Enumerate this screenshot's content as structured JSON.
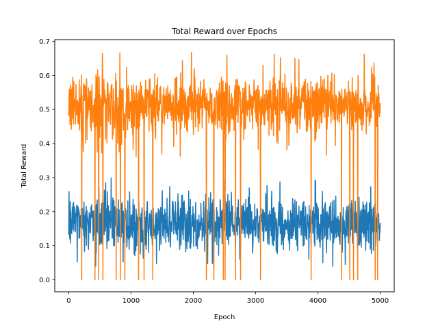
{
  "chart_data": {
    "type": "line",
    "title": "Total Reward over Epochs",
    "xlabel": "Epoch",
    "ylabel": "Total Reward",
    "xlim": [
      -225,
      5225
    ],
    "ylim": [
      -0.035,
      0.705
    ],
    "xticks": [
      0,
      1000,
      2000,
      3000,
      4000,
      5000
    ],
    "yticks": [
      0.0,
      0.1,
      0.2,
      0.3,
      0.4,
      0.5,
      0.6,
      0.7
    ],
    "xtick_labels": [
      "0",
      "1000",
      "2000",
      "3000",
      "4000",
      "5000"
    ],
    "ytick_labels": [
      "0.0",
      "0.1",
      "0.2",
      "0.3",
      "0.4",
      "0.5",
      "0.6",
      "0.7"
    ],
    "grid": false,
    "legend": false,
    "series": [
      {
        "color": "#1f77b4",
        "x_range": [
          0,
          5000
        ],
        "mean": 0.165,
        "typical_range": [
          0.08,
          0.28
        ],
        "max": 0.3,
        "min": 0.04
      },
      {
        "color": "#ff7f0e",
        "x_range": [
          0,
          5000
        ],
        "mean": 0.515,
        "typical_range": [
          0.42,
          0.64
        ],
        "max": 0.67,
        "min": 0.0,
        "zero_dip_epochs": [
          210,
          420,
          480,
          550,
          760,
          830,
          900,
          1120,
          1210,
          1350,
          2210,
          2330,
          2480,
          2510,
          2680,
          2760,
          3080,
          3890,
          4380,
          4510,
          4570,
          4640,
          4920,
          4960
        ]
      }
    ]
  }
}
